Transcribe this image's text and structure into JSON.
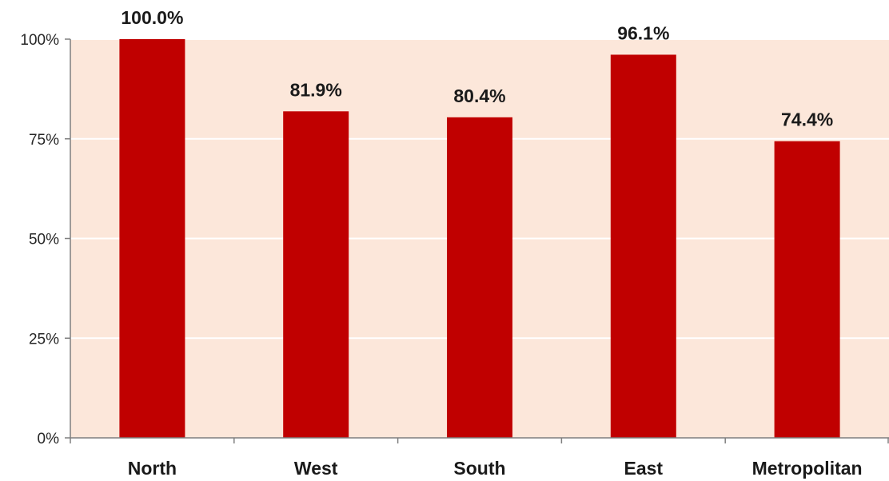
{
  "chart_data": {
    "type": "bar",
    "categories": [
      "North",
      "West",
      "South",
      "East",
      "Metropolitan"
    ],
    "values": [
      100.0,
      81.9,
      80.4,
      96.1,
      74.4
    ],
    "data_labels": [
      "100.0%",
      "81.9%",
      "80.4%",
      "96.1%",
      "74.4%"
    ],
    "y_ticks": [
      0,
      25,
      50,
      75,
      100
    ],
    "y_tick_labels": [
      "0%",
      "25%",
      "50%",
      "75%",
      "100%"
    ],
    "ylim": [
      0,
      100
    ],
    "title": "",
    "xlabel": "",
    "ylabel": "",
    "grid": true,
    "legend": "none",
    "colors": {
      "bar": "#c00000",
      "plot_background": "#fce7da",
      "gridline": "#ffffff",
      "axis": "#7f7f7f"
    }
  }
}
